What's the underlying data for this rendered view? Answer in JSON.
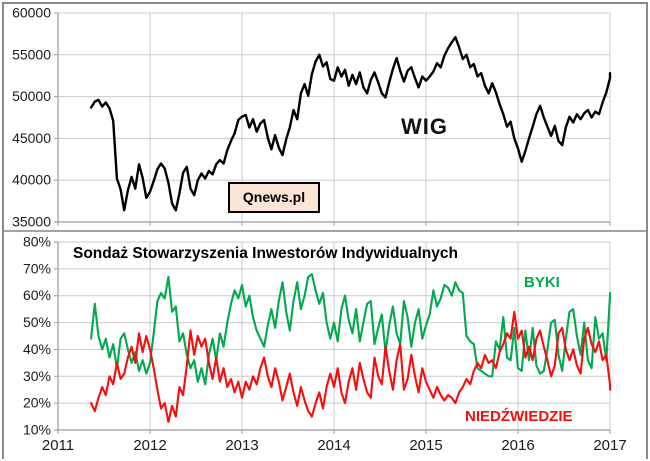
{
  "colors": {
    "background": "#FFFFFF",
    "frame_border": "#8A8A8A",
    "panel_divider": "#A3A3A3",
    "grid": "#CBCBCB",
    "axis": "#9A9A9A",
    "text": "#1A1A1A",
    "wig": "#000000",
    "byki": "#00A84E",
    "niedzwiedzie": "#F80C0C",
    "qnews_bg": "#FBE5D6",
    "qnews_border": "#000000"
  },
  "top_chart": {
    "wig_label": "WIG",
    "qnews_label": "Qnews.pl"
  },
  "bottom_chart": {
    "title": "Sondaż Stowarzyszenia Inwestorów Indywidualnych",
    "byki_label": "BYKI",
    "niedzwiedzie_label": "NIEDŹWIEDZIE"
  },
  "chart_data": [
    {
      "type": "line",
      "title": "WIG",
      "grid": true,
      "x_axis": {
        "min": 2011,
        "max": 2017,
        "ticks": [
          2011,
          2012,
          2013,
          2014,
          2015,
          2016,
          2017
        ],
        "tick_labels": [
          "2011",
          "2012",
          "2013",
          "2014",
          "2015",
          "2016",
          "2017"
        ],
        "show_tick_labels": false
      },
      "y_axis": {
        "min": 35000,
        "max": 60000,
        "ticks": [
          35000,
          40000,
          45000,
          50000,
          55000,
          60000
        ],
        "tick_labels": [
          "35000",
          "40000",
          "45000",
          "50000",
          "55000",
          "60000"
        ]
      },
      "annotations": [
        "WIG",
        "Qnews.pl"
      ],
      "series": [
        {
          "name": "WIG",
          "key": "wig",
          "color": "#000000",
          "width": 2.4,
          "x_start": 2011.36,
          "x_step": 0.04,
          "values": [
            48700,
            49400,
            49600,
            48800,
            49300,
            48600,
            47100,
            40200,
            38900,
            36400,
            38800,
            40400,
            39000,
            41900,
            40300,
            37900,
            38600,
            39900,
            41300,
            42000,
            41400,
            39700,
            37200,
            36400,
            38400,
            40900,
            41600,
            39000,
            38200,
            40000,
            40800,
            40200,
            41100,
            40700,
            41900,
            42400,
            42000,
            43600,
            44700,
            45600,
            47200,
            47600,
            47800,
            46300,
            47300,
            45800,
            46800,
            47200,
            45100,
            43700,
            45400,
            43900,
            43000,
            44900,
            46300,
            48400,
            47300,
            50400,
            51500,
            50100,
            52700,
            54200,
            55000,
            53600,
            54100,
            52100,
            51900,
            53500,
            52400,
            53200,
            51300,
            52600,
            51500,
            52900,
            51100,
            50400,
            52000,
            52900,
            51700,
            50400,
            49900,
            51700,
            53300,
            54600,
            53100,
            51800,
            53100,
            53500,
            52200,
            51100,
            52400,
            51900,
            52400,
            53000,
            54000,
            53500,
            54900,
            55800,
            56500,
            57100,
            55900,
            54500,
            55000,
            53500,
            53900,
            52400,
            52800,
            51300,
            50400,
            51600,
            50500,
            49100,
            47900,
            46400,
            47000,
            45000,
            43800,
            42200,
            43500,
            45000,
            46400,
            47900,
            48900,
            47500,
            46400,
            45300,
            46500,
            44700,
            44200,
            46300,
            47600,
            46900,
            47900,
            47300,
            48000,
            48400,
            47500,
            48200,
            47900,
            49300,
            50500,
            52200,
            52800
          ]
        }
      ]
    },
    {
      "type": "line",
      "title": "Sondaż Stowarzyszenia Inwestorów Indywidualnych",
      "grid": true,
      "x_axis": {
        "min": 2011,
        "max": 2017,
        "ticks": [
          2011,
          2012,
          2013,
          2014,
          2015,
          2016,
          2017
        ],
        "tick_labels": [
          "2011",
          "2012",
          "2013",
          "2014",
          "2015",
          "2016",
          "2017"
        ],
        "show_tick_labels": true
      },
      "y_axis": {
        "min": 10,
        "max": 80,
        "ticks": [
          10,
          20,
          30,
          40,
          50,
          60,
          70,
          80
        ],
        "tick_labels": [
          "10%",
          "20%",
          "30%",
          "40%",
          "50%",
          "60%",
          "70%",
          "80%"
        ]
      },
      "annotations": [
        "BYKI",
        "NIEDŹWIEDZIE"
      ],
      "series": [
        {
          "name": "BYKI",
          "key": "byki",
          "color": "#00A84E",
          "width": 2.1,
          "x_start": 2011.36,
          "x_step": 0.04,
          "values": [
            44,
            57,
            45,
            40,
            44,
            37,
            42,
            33,
            44,
            46,
            40,
            35,
            39,
            32,
            36,
            31,
            35,
            46,
            58,
            61,
            59,
            67,
            54,
            56,
            43,
            46,
            38,
            33,
            36,
            28,
            33,
            27,
            38,
            44,
            36,
            46,
            41,
            50,
            57,
            62,
            59,
            64,
            56,
            60,
            52,
            47,
            44,
            41,
            49,
            55,
            48,
            58,
            65,
            54,
            47,
            58,
            65,
            55,
            60,
            67,
            68,
            62,
            57,
            61,
            50,
            44,
            50,
            43,
            55,
            60,
            51,
            46,
            55,
            43,
            50,
            57,
            58,
            42,
            48,
            53,
            39,
            49,
            56,
            46,
            42,
            58,
            52,
            41,
            50,
            55,
            44,
            49,
            53,
            62,
            56,
            59,
            64,
            63,
            60,
            65,
            62,
            61,
            45,
            43,
            42,
            33,
            32,
            31,
            30,
            30,
            43,
            40,
            52,
            37,
            36,
            48,
            33,
            32,
            47,
            36,
            48,
            34,
            31,
            32,
            40,
            50,
            51,
            38,
            32,
            44,
            54,
            55,
            45,
            38,
            50,
            36,
            33,
            52,
            44,
            46,
            36,
            60,
            61
          ]
        },
        {
          "name": "NIEDŹWIEDZIE",
          "key": "niedzwiedzie",
          "color": "#F80C0C",
          "width": 2.1,
          "x_start": 2011.36,
          "x_step": 0.04,
          "values": [
            20,
            17,
            22,
            26,
            23,
            30,
            27,
            35,
            29,
            31,
            37,
            41,
            35,
            46,
            39,
            45,
            40,
            33,
            25,
            18,
            20,
            13,
            19,
            15,
            26,
            23,
            34,
            47,
            38,
            45,
            41,
            44,
            35,
            29,
            37,
            28,
            33,
            26,
            29,
            24,
            28,
            22,
            28,
            25,
            30,
            27,
            33,
            37,
            30,
            26,
            33,
            28,
            21,
            26,
            31,
            24,
            19,
            26,
            21,
            17,
            15,
            20,
            24,
            18,
            26,
            31,
            26,
            33,
            24,
            20,
            28,
            33,
            25,
            35,
            29,
            24,
            22,
            37,
            30,
            27,
            41,
            32,
            25,
            36,
            42,
            25,
            29,
            38,
            30,
            24,
            33,
            28,
            25,
            22,
            26,
            23,
            21,
            23,
            22,
            20,
            24,
            26,
            29,
            27,
            32,
            35,
            33,
            38,
            35,
            36,
            33,
            39,
            42,
            46,
            44,
            54,
            44,
            47,
            37,
            41,
            36,
            44,
            47,
            41,
            36,
            30,
            34,
            46,
            48,
            40,
            36,
            40,
            34,
            31,
            44,
            48,
            42,
            39,
            43,
            36,
            38,
            27,
            25
          ]
        }
      ]
    }
  ]
}
